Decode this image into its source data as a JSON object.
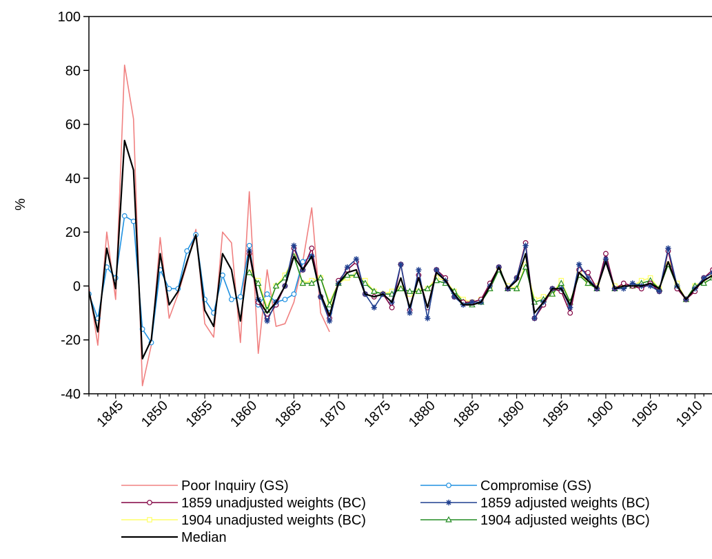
{
  "chart_data": {
    "type": "line",
    "title": "",
    "xlabel": "",
    "ylabel": "%",
    "ylim": [
      -40,
      100
    ],
    "xlim": [
      1842,
      1912
    ],
    "yticks": [
      -40,
      -20,
      0,
      20,
      40,
      60,
      80,
      100
    ],
    "xticks": [
      1845,
      1850,
      1855,
      1860,
      1865,
      1870,
      1875,
      1880,
      1885,
      1890,
      1895,
      1900,
      1905,
      1910
    ],
    "grid": false,
    "legend_position": "bottom",
    "series": [
      {
        "name": "Poor Inquiry (GS)",
        "color": "#f08080",
        "marker": "none",
        "start_year": 1842,
        "values": [
          0,
          -22,
          20,
          -5,
          82,
          62,
          -37,
          -22,
          18,
          -12,
          -3,
          8,
          21,
          -14,
          -19,
          20,
          16,
          -21,
          35,
          -25,
          6,
          -15,
          -14,
          -6,
          9,
          29,
          -10,
          -17
        ]
      },
      {
        "name": "Compromise (GS)",
        "color": "#1e90e0",
        "marker": "circle",
        "start_year": 1842,
        "values": [
          -3,
          -12,
          7,
          3,
          26,
          24,
          -16,
          -21,
          6,
          -1,
          -1,
          13,
          19,
          -5,
          -10,
          4,
          -5,
          -4,
          15,
          -7,
          -3,
          -6,
          -5,
          -3,
          9,
          11,
          -4,
          -10
        ]
      },
      {
        "name": "1859 unadjusted weights (BC)",
        "color": "#800040",
        "marker": "circle",
        "start_year": 1860,
        "values": [
          12,
          -6,
          -12,
          -7,
          0,
          14,
          6,
          14,
          -4,
          -12,
          2,
          6,
          9,
          -3,
          -4,
          -3,
          -8,
          8,
          -9,
          4,
          -8,
          6,
          3,
          -4,
          -6,
          -6,
          -5,
          1,
          7,
          -1,
          3,
          16,
          -12,
          -7,
          -1,
          -2,
          -10,
          6,
          5,
          -1,
          12,
          -1,
          1,
          0,
          -1,
          1,
          -2,
          13,
          -1,
          -5,
          -2,
          3,
          6
        ]
      },
      {
        "name": "1859 adjusted weights (BC)",
        "color": "#1f3f8f",
        "marker": "star",
        "start_year": 1860,
        "values": [
          13,
          -5,
          -13,
          -6,
          0,
          15,
          6,
          11,
          -4,
          -13,
          1,
          7,
          10,
          -3,
          -8,
          -3,
          -6,
          8,
          -10,
          6,
          -12,
          6,
          2,
          -4,
          -7,
          -6,
          -6,
          0,
          7,
          -1,
          3,
          15,
          -12,
          -6,
          -1,
          -1,
          -8,
          8,
          3,
          -1,
          10,
          -1,
          -1,
          1,
          0,
          0,
          -2,
          14,
          0,
          -5,
          -1,
          3,
          5
        ]
      },
      {
        "name": "1904 unadjusted weights (BC)",
        "color": "#ffff66",
        "marker": "square",
        "start_year": 1860,
        "values": [
          5,
          2,
          -8,
          0,
          4,
          11,
          1,
          2,
          3,
          -6,
          1,
          3,
          4,
          2,
          -2,
          -3,
          -2,
          -1,
          -3,
          -2,
          -1,
          3,
          2,
          -2,
          -5,
          -6,
          -5,
          -1,
          6,
          0,
          -1,
          8,
          -5,
          -4,
          -3,
          2,
          -6,
          5,
          1,
          0,
          9,
          0,
          0,
          0,
          2,
          3,
          -1,
          8,
          1,
          -5,
          0,
          2,
          4
        ]
      },
      {
        "name": "1904 adjusted weights (BC)",
        "color": "#228b22",
        "marker": "triangle",
        "start_year": 1860,
        "values": [
          5,
          1,
          -9,
          0,
          3,
          11,
          1,
          1,
          3,
          -7,
          1,
          4,
          4,
          1,
          -2,
          -3,
          -3,
          -1,
          -2,
          -2,
          -1,
          2,
          1,
          -2,
          -6,
          -7,
          -6,
          -1,
          6,
          -1,
          -1,
          7,
          -6,
          -5,
          -3,
          1,
          -6,
          4,
          1,
          -1,
          9,
          -1,
          0,
          0,
          1,
          2,
          -1,
          8,
          0,
          -5,
          0,
          1,
          3
        ]
      },
      {
        "name": "Median",
        "color": "#000000",
        "marker": "none",
        "start_year": 1842,
        "values": [
          -2,
          -17,
          14,
          -1,
          54,
          43,
          -27,
          -20,
          12,
          -7,
          -2,
          9,
          19,
          -9,
          -15,
          12,
          6,
          -13,
          13,
          -5,
          -10,
          -6,
          0,
          11,
          6,
          11,
          -3,
          -11,
          1,
          5,
          6,
          -3,
          -4,
          -3,
          -6,
          3,
          -8,
          3,
          -8,
          5,
          2,
          -3,
          -7,
          -7,
          -6,
          0,
          7,
          -1,
          2,
          12,
          -10,
          -6,
          -1,
          -1,
          -7,
          5,
          2,
          -1,
          9,
          -1,
          0,
          0,
          0,
          1,
          -1,
          9,
          0,
          -5,
          -1,
          2,
          4
        ]
      }
    ]
  }
}
